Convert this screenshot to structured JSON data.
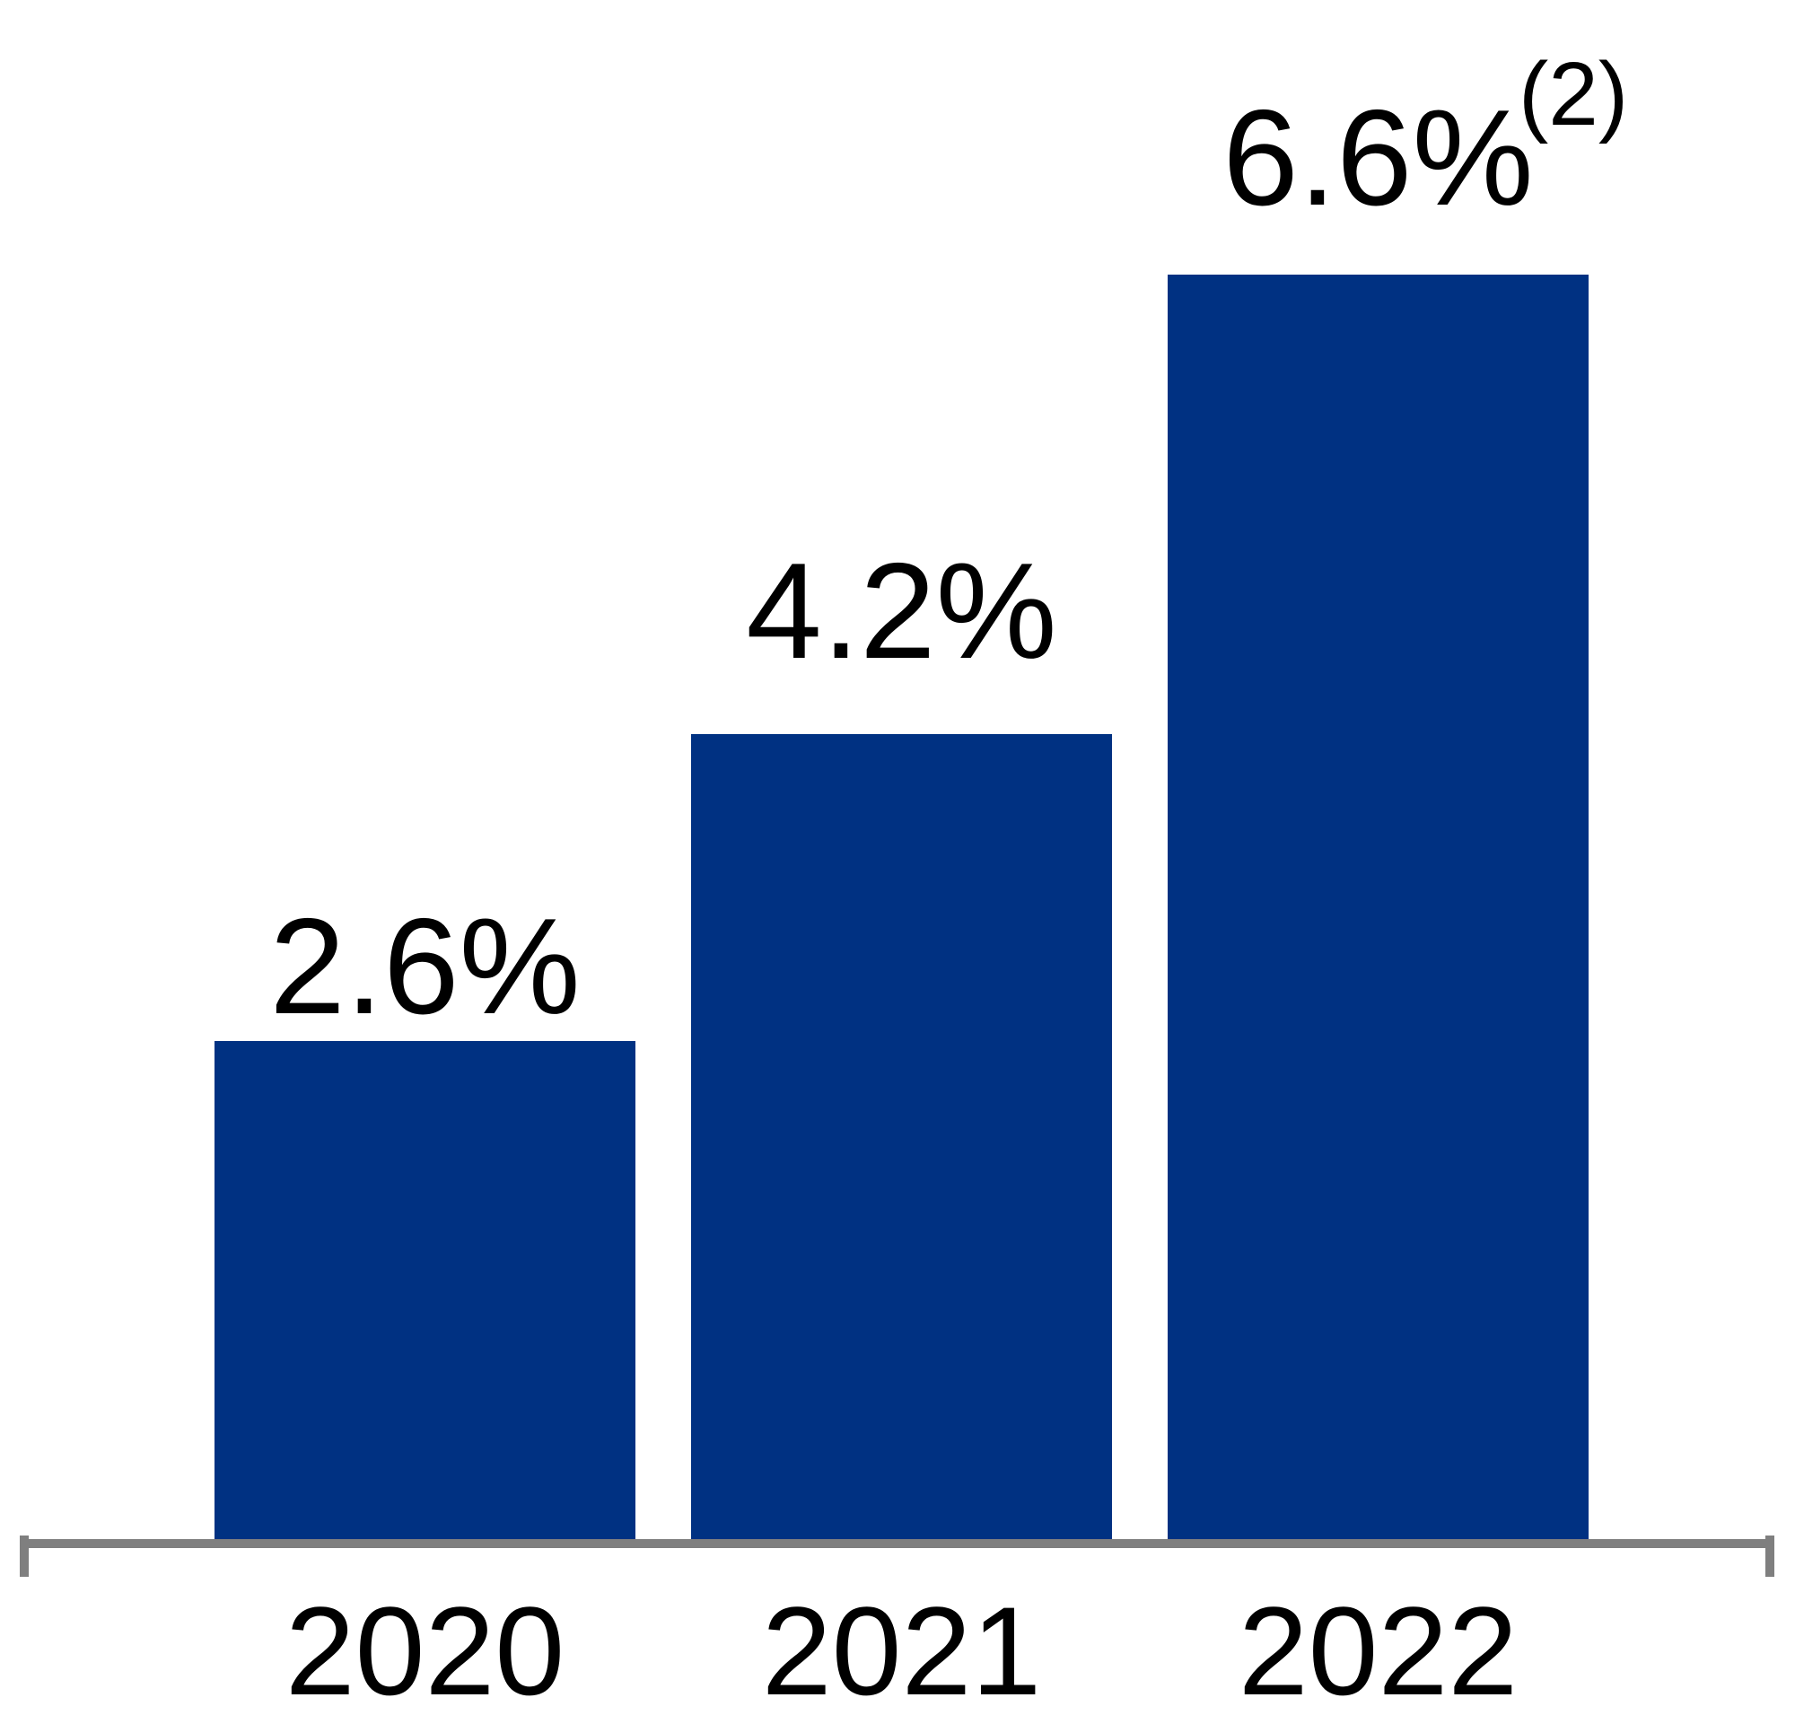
{
  "chart_data": {
    "type": "bar",
    "categories": [
      "2020",
      "2021",
      "2022"
    ],
    "values": [
      2.6,
      4.2,
      6.6
    ],
    "value_labels": [
      "2.6%",
      "4.2%",
      "6.6%"
    ],
    "footnote_marker": "(2)",
    "footnote_applies_to": "2022",
    "title": "",
    "xlabel": "",
    "ylabel": "",
    "ylim": [
      0,
      7.5
    ],
    "grid": false,
    "legend_position": "none",
    "colors": {
      "bar": "#003182",
      "axis": "#7F7F7F",
      "text": "#000000",
      "background": "#FFFFFF"
    }
  }
}
